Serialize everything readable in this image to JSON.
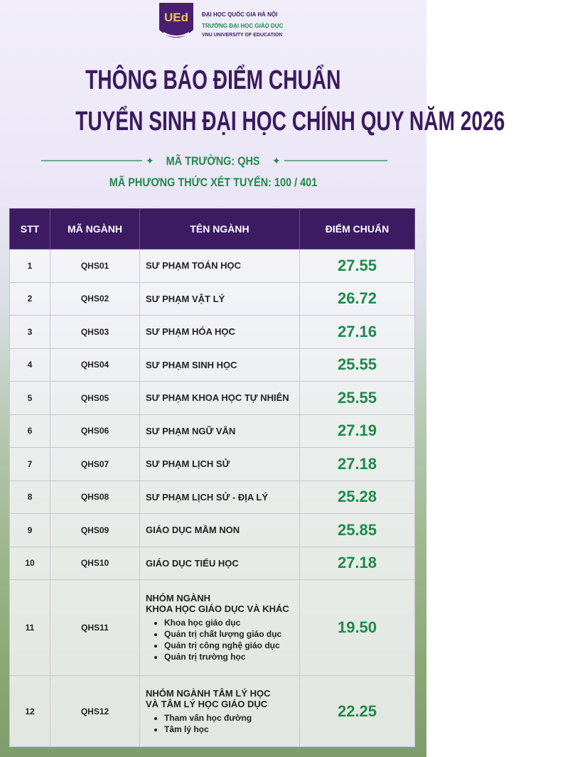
{
  "header": {
    "logo_lines": [
      "ĐẠI HỌC QUỐC GIA HÀ NỘI",
      "TRƯỜNG ĐẠI HỌC GIÁO DỤC",
      "VNU UNIVERSITY OF EDUCATION"
    ],
    "title_lines": [
      "THÔNG BÁO ĐIỂM CHUẨN",
      "TUYỂN SINH ĐẠI HỌC CHÍNH QUY NĂM 2026"
    ],
    "school_code": "MÃ TRƯỜNG: QHS",
    "method_code": "MÃ PHƯƠNG THỨC XÉT TUYỂN: 100 / 401"
  },
  "table": {
    "columns": [
      "STT",
      "MÃ NGÀNH",
      "TÊN NGÀNH",
      "ĐIỂM CHUẨN"
    ],
    "rows": [
      {
        "stt": "1",
        "code": "QHS01",
        "name_lines": [
          "SƯ PHẠM TOÁN HỌC"
        ],
        "score": "27.55"
      },
      {
        "stt": "2",
        "code": "QHS02",
        "name_lines": [
          "SƯ PHẠM VẬT LÝ"
        ],
        "score": "26.72"
      },
      {
        "stt": "3",
        "code": "QHS03",
        "name_lines": [
          "SƯ PHẠM HÓA HỌC"
        ],
        "score": "27.16"
      },
      {
        "stt": "4",
        "code": "QHS04",
        "name_lines": [
          "SƯ PHẠM SINH HỌC"
        ],
        "score": "25.55"
      },
      {
        "stt": "5",
        "code": "QHS05",
        "name_lines": [
          "SƯ PHẠM KHOA HỌC TỰ NHIÊN"
        ],
        "score": "25.55"
      },
      {
        "stt": "6",
        "code": "QHS06",
        "name_lines": [
          "SƯ PHẠM NGỮ VĂN"
        ],
        "score": "27.19"
      },
      {
        "stt": "7",
        "code": "QHS07",
        "name_lines": [
          "SƯ PHẠM LỊCH SỬ"
        ],
        "score": "27.18"
      },
      {
        "stt": "8",
        "code": "QHS08",
        "name_lines": [
          "SƯ PHẠM LỊCH SỬ - ĐỊA LÝ"
        ],
        "score": "25.28"
      },
      {
        "stt": "9",
        "code": "QHS09",
        "name_lines": [
          "GIÁO DỤC MẦM NON"
        ],
        "score": "25.85"
      },
      {
        "stt": "10",
        "code": "QHS10",
        "name_lines": [
          "GIÁO DỤC TIỂU HỌC"
        ],
        "score": "27.18"
      },
      {
        "stt": "11",
        "code": "QHS11",
        "name_lines": [
          "NHÓM NGÀNH",
          "KHOA HỌC GIÁO DỤC VÀ KHÁC"
        ],
        "items": [
          "Khoa học giáo dục",
          "Quản trị chất lượng giáo dục",
          "Quản trị công nghệ giáo dục",
          "Quản trị trường học"
        ],
        "score": "19.50"
      },
      {
        "stt": "12",
        "code": "QHS12",
        "name_lines": [
          "NHÓM NGÀNH TÂM LÝ HỌC",
          "VÀ TÂM LÝ HỌC GIÁO DỤC"
        ],
        "items": [
          "Tham vấn học đường",
          "Tâm lý học"
        ],
        "score": "22.25"
      }
    ]
  }
}
